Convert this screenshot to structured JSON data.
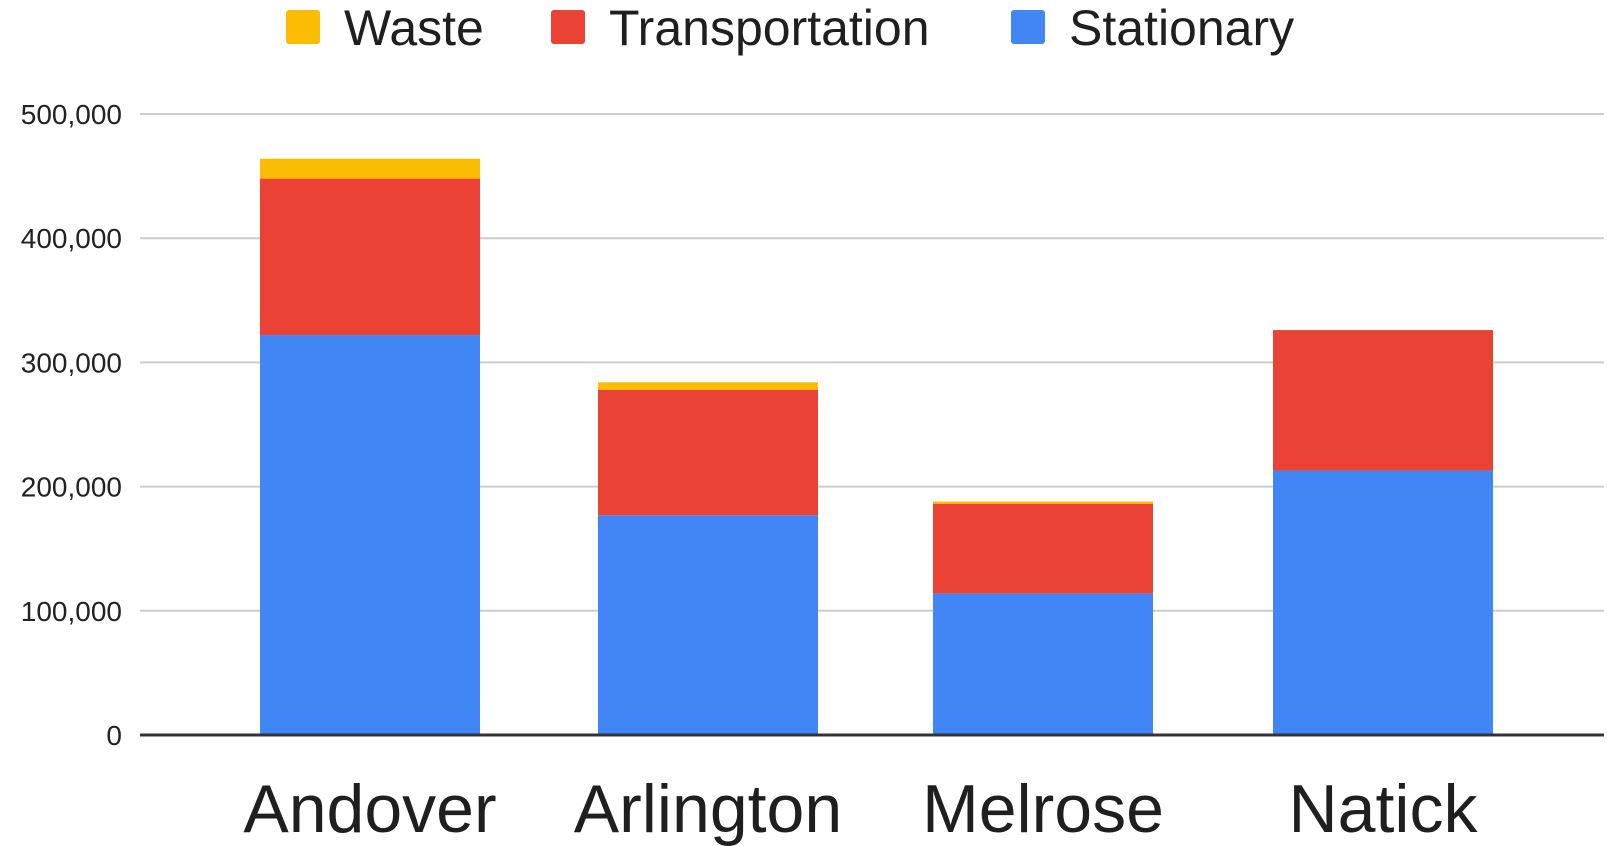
{
  "chart_data": {
    "type": "bar",
    "stacked": true,
    "title": "",
    "xlabel": "",
    "ylabel": "",
    "categories": [
      "Andover",
      "Arlington",
      "Melrose",
      "Natick"
    ],
    "series": [
      {
        "name": "Stationary",
        "color": "#4285F4",
        "values": [
          322000,
          177000,
          114000,
          213000
        ]
      },
      {
        "name": "Transportation",
        "color": "#EA4335",
        "values": [
          126000,
          101000,
          72000,
          113000
        ]
      },
      {
        "name": "Waste",
        "color": "#FBBC04",
        "values": [
          16000,
          6000,
          2000,
          0
        ]
      }
    ],
    "legend_order": [
      "Waste",
      "Transportation",
      "Stationary"
    ],
    "legend_position": "top-center",
    "ylim": [
      0,
      500000
    ],
    "yticks": [
      0,
      100000,
      200000,
      300000,
      400000,
      500000
    ],
    "ytick_labels": [
      "0",
      "100,000",
      "200,000",
      "300,000",
      "400,000",
      "500,000"
    ],
    "grid": true,
    "colors": {
      "grid": "#cccccc",
      "axis": "#333333"
    }
  }
}
